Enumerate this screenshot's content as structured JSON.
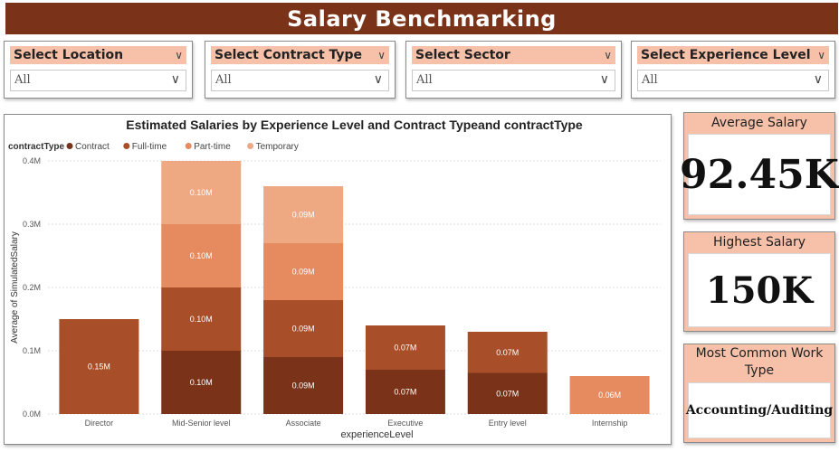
{
  "header": {
    "title": "Salary Benchmarking"
  },
  "filters": [
    {
      "label": "Select Location",
      "value": "All"
    },
    {
      "label": "Select Contract Type",
      "value": "All"
    },
    {
      "label": "Select Sector",
      "value": "All"
    },
    {
      "label": "Select Experience Level",
      "value": "All"
    }
  ],
  "cards": {
    "average": {
      "title": "Average Salary",
      "value": "92.45K"
    },
    "highest": {
      "title": "Highest Salary",
      "value": "150K"
    },
    "common_work": {
      "title": "Most Common Work Type",
      "value": "Accounting/Auditing"
    }
  },
  "icons": {
    "dropdown": "chevron-down-icon"
  },
  "colors": {
    "header_bg": "#7a3319",
    "accent_light": "#f6c0a9"
  },
  "chart_data": {
    "type": "bar",
    "stacked": true,
    "title": "Estimated Salaries by Experience Level and Contract Typeand contractType",
    "legend_title": "contractType",
    "legend_position": "top-left",
    "xlabel": "experienceLevel",
    "ylabel": "Average of SimulatedSalary",
    "ylim": [
      0,
      0.4
    ],
    "yticks": [
      "0.0M",
      "0.1M",
      "0.2M",
      "0.3M",
      "0.4M"
    ],
    "grid": true,
    "categories": [
      "Director",
      "Mid-Senior level",
      "Associate",
      "Executive",
      "Entry level",
      "Internship"
    ],
    "series": [
      {
        "name": "Contract",
        "color": "#7a3319",
        "values": [
          0,
          0.1,
          0.09,
          0.07,
          0.065,
          0
        ],
        "labels": [
          "",
          "0.10M",
          "0.09M",
          "0.07M",
          "0.07M",
          ""
        ]
      },
      {
        "name": "Full-time",
        "color": "#a84e28",
        "values": [
          0.15,
          0.1,
          0.09,
          0.07,
          0.065,
          0
        ],
        "labels": [
          "0.15M",
          "0.10M",
          "0.09M",
          "0.07M",
          "0.07M",
          ""
        ]
      },
      {
        "name": "Part-time",
        "color": "#e68a60",
        "values": [
          0,
          0.1,
          0.09,
          0,
          0,
          0.06
        ],
        "labels": [
          "",
          "0.10M",
          "0.09M",
          "",
          "",
          "0.06M"
        ]
      },
      {
        "name": "Temporary",
        "color": "#eea882",
        "values": [
          0,
          0.1,
          0.09,
          0,
          0,
          0
        ],
        "labels": [
          "",
          "0.10M",
          "0.09M",
          "",
          "",
          ""
        ]
      }
    ]
  }
}
